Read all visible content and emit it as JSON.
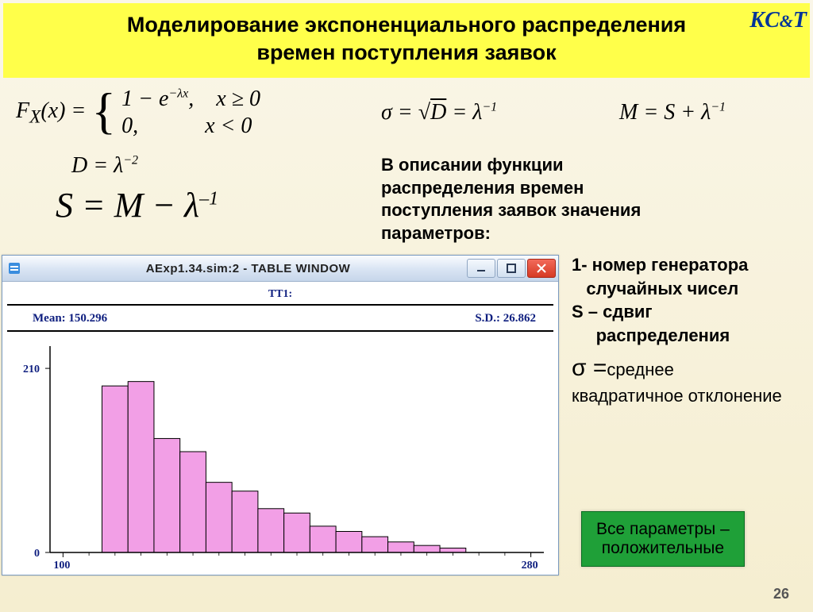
{
  "title": {
    "line1": "Моделирование экспоненциального распределения",
    "line2": "времен поступления заявок"
  },
  "logo": "KC&T",
  "formulas": {
    "fx_lhs": "F",
    "fx_sub": "X",
    "fx_arg": "(x) =",
    "fx_case1": "1 − e",
    "fx_case1_exp": "−λx",
    "fx_case1_cond": ", x ≥ 0",
    "fx_case2": "0,",
    "fx_case2_cond": "x < 0",
    "d": "D = λ",
    "d_exp": "−2",
    "s": "S = M − λ",
    "s_exp": "–1",
    "sigma": "σ = ",
    "sigma_sqrt": "D",
    "sigma_rhs": " = λ",
    "sigma_exp": "−1",
    "m": "M = S + λ",
    "m_exp": "−1"
  },
  "description": "В описании функции распределения времен поступления заявок значения параметров:",
  "params": {
    "p1a": "1- номер генератора",
    "p1b": "случайных чисел",
    "p2a": "S – сдвиг",
    "p2b": "распределения",
    "sigma_sym": "σ",
    "sigma_eq": " =",
    "sigma_txt": "среднее",
    "sigma_txt2": "квадратичное отклонение"
  },
  "green_box": {
    "l1": "Все параметры –",
    "l2": "положительные"
  },
  "page_number": "26",
  "window": {
    "title": "AExp1.34.sim:2  -  TABLE WINDOW",
    "tt_label": "TT1:",
    "mean_label": "Mean: ",
    "mean_value": "150.296",
    "sd_label": "S.D.: ",
    "sd_value": "26.862"
  },
  "chart": {
    "type": "bar",
    "y_max_label": "210",
    "y_min_label": "0",
    "x_min_label": "100",
    "x_max_label": "280",
    "ylim": [
      0,
      230
    ],
    "xlim": [
      95,
      285
    ],
    "bar_color": "#f29fe6",
    "bar_border": "#000000",
    "axis_color": "#000000",
    "tick_text_color": "#102080",
    "background": "#ffffff",
    "categories": [
      120,
      130,
      140,
      150,
      160,
      170,
      180,
      190,
      200,
      210,
      220,
      230,
      240,
      250
    ],
    "values": [
      190,
      195,
      130,
      115,
      80,
      70,
      50,
      45,
      30,
      24,
      18,
      12,
      8,
      5
    ],
    "bar_width_ratio": 1.0
  }
}
